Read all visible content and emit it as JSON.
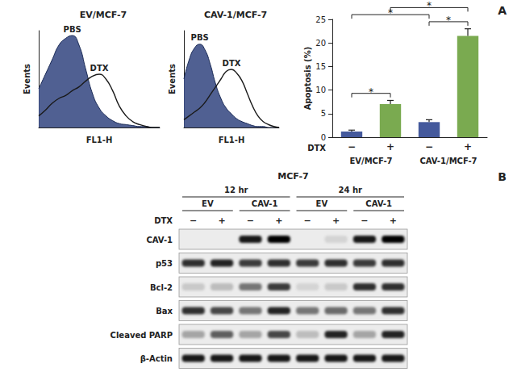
{
  "chart_data": [
    {
      "type": "line",
      "title": "EV/MCF-7",
      "x_label": "FL1-H",
      "y_label": "Events",
      "x": [
        0,
        2,
        4,
        6,
        8,
        10,
        12,
        14,
        16,
        18,
        20,
        22,
        24,
        26,
        28,
        30,
        32,
        34,
        36
      ],
      "series": [
        {
          "name": "PBS",
          "type": "area",
          "color": "#3d4f86",
          "values": [
            40,
            55,
            70,
            85,
            92,
            95,
            85,
            60,
            35,
            20,
            12,
            7,
            4,
            3,
            2,
            1,
            1,
            0,
            0
          ]
        },
        {
          "name": "DTX",
          "type": "line",
          "color": "#1a1a1a",
          "values": [
            12,
            18,
            25,
            30,
            33,
            38,
            42,
            48,
            53,
            55,
            50,
            38,
            22,
            12,
            6,
            3,
            1,
            0,
            0
          ]
        }
      ],
      "xlim": [
        0,
        36
      ],
      "ylim": [
        0,
        100
      ],
      "tick_labels": false,
      "grid": false
    },
    {
      "type": "line",
      "title": "CAV-1/MCF-7",
      "x_label": "FL1-H",
      "y_label": "Events",
      "x": [
        0,
        2,
        4,
        6,
        8,
        10,
        12,
        14,
        16,
        18,
        20,
        22,
        24,
        26,
        28,
        30,
        32,
        34,
        36
      ],
      "series": [
        {
          "name": "PBS",
          "type": "area",
          "color": "#3d4f86",
          "values": [
            50,
            70,
            82,
            86,
            80,
            65,
            45,
            30,
            20,
            14,
            9,
            6,
            4,
            2,
            1,
            1,
            0,
            0,
            0
          ]
        },
        {
          "name": "DTX",
          "type": "line",
          "color": "#1a1a1a",
          "values": [
            8,
            12,
            16,
            20,
            26,
            34,
            42,
            50,
            58,
            60,
            56,
            48,
            35,
            22,
            12,
            6,
            3,
            1,
            0
          ]
        }
      ],
      "xlim": [
        0,
        36
      ],
      "ylim": [
        0,
        100
      ],
      "tick_labels": false,
      "grid": false
    },
    {
      "type": "bar",
      "panel_label": "A",
      "y_label": "Apoptosis (%)",
      "categories": [
        "−",
        "+",
        "−",
        "+"
      ],
      "category_label": "DTX",
      "groups": [
        "EV/MCF-7",
        "CAV-1/MCF-7"
      ],
      "values": [
        1.2,
        7.0,
        3.2,
        21.5
      ],
      "errors": [
        0.3,
        0.8,
        0.5,
        1.5
      ],
      "colors": [
        "#44599c",
        "#7aaa50",
        "#44599c",
        "#7aaa50"
      ],
      "ylim": [
        0,
        25
      ],
      "yticks": [
        0,
        5,
        10,
        15,
        20,
        25
      ],
      "grid": false,
      "comparisons": [
        {
          "pair": [
            0,
            1
          ],
          "label": "*"
        },
        {
          "pair": [
            2,
            3
          ],
          "label": "*"
        },
        {
          "pair": [
            0,
            2
          ],
          "label": "*"
        },
        {
          "pair": [
            1,
            3
          ],
          "label": "*"
        }
      ]
    }
  ],
  "blot": {
    "panel_label": "B",
    "title": "MCF-7",
    "times": [
      "12 hr",
      "24 hr"
    ],
    "groups": [
      "EV",
      "CAV-1"
    ],
    "treatment_label": "DTX",
    "lanes": [
      "−",
      "+",
      "−",
      "+",
      "−",
      "+",
      "−",
      "+"
    ],
    "rows": [
      {
        "name": "CAV-1",
        "intensities": [
          0,
          0,
          0.9,
          1,
          0,
          0.1,
          0.9,
          1
        ]
      },
      {
        "name": "p53",
        "intensities": [
          0.8,
          0.85,
          0.75,
          0.8,
          0.75,
          0.8,
          0.75,
          0.8
        ]
      },
      {
        "name": "Bcl-2",
        "intensities": [
          0.15,
          0.2,
          0.5,
          0.75,
          0.1,
          0.15,
          0.8,
          0.8
        ]
      },
      {
        "name": "Bax",
        "intensities": [
          0.8,
          0.7,
          0.5,
          0.85,
          0.5,
          0.55,
          0.5,
          0.8
        ]
      },
      {
        "name": "Cleaved PARP",
        "intensities": [
          0.3,
          0.6,
          0.3,
          0.7,
          0.2,
          0.85,
          0.3,
          0.85
        ]
      },
      {
        "name": "β-Actin",
        "intensities": [
          0.9,
          0.9,
          0.9,
          0.9,
          0.9,
          0.9,
          0.9,
          0.9
        ]
      }
    ]
  }
}
